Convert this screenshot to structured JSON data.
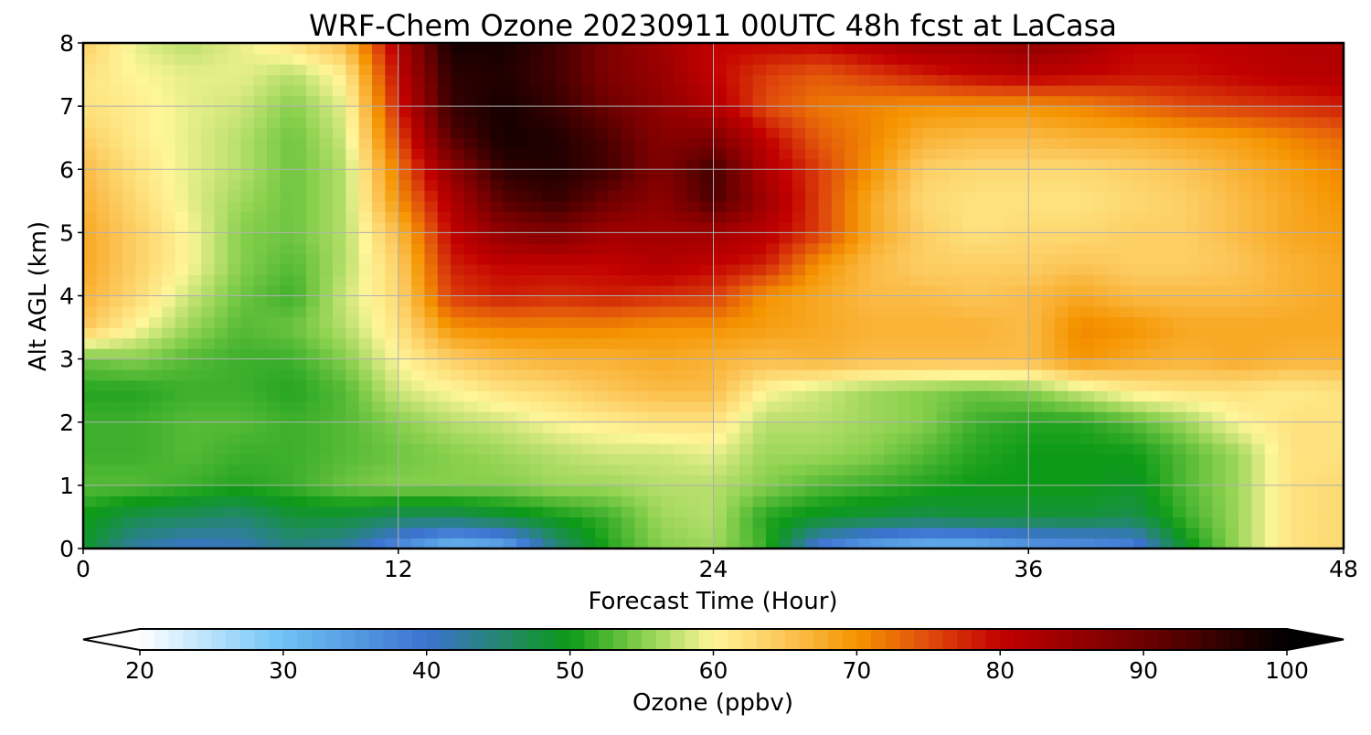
{
  "chart_data": {
    "type": "heatmap",
    "title": "WRF-Chem Ozone  20230911 00UTC 48h fcst at LaCasa",
    "xlabel": "Forecast Time (Hour)",
    "ylabel": "Alt AGL (km)",
    "xlim": [
      0,
      48
    ],
    "ylim": [
      0,
      8
    ],
    "x_ticks": [
      0,
      12,
      24,
      36,
      48
    ],
    "y_ticks": [
      0,
      1,
      2,
      3,
      4,
      5,
      6,
      7,
      8
    ],
    "grid": true,
    "x": [
      0,
      2,
      4,
      6,
      8,
      10,
      12,
      14,
      16,
      18,
      20,
      22,
      24,
      26,
      28,
      30,
      32,
      34,
      36,
      38,
      40,
      42,
      44,
      46,
      48
    ],
    "y": [
      0,
      0.5,
      1,
      1.5,
      2,
      2.5,
      3,
      3.5,
      4,
      4.5,
      5,
      5.5,
      6,
      6.5,
      7,
      7.5,
      8
    ],
    "z": [
      [
        49,
        42,
        40,
        41,
        44,
        42,
        36,
        30,
        32,
        44,
        51,
        55,
        56,
        52,
        38,
        33,
        31,
        31,
        34,
        35,
        37,
        49,
        56,
        62,
        63
      ],
      [
        50,
        47,
        46,
        45,
        48,
        48,
        46,
        46,
        48,
        50,
        52,
        56,
        57,
        51,
        49,
        48,
        47,
        48,
        48,
        48,
        47,
        52,
        56,
        62,
        63
      ],
      [
        53,
        53,
        52,
        51,
        52,
        54,
        55,
        55,
        55,
        56,
        56,
        57,
        57,
        55,
        53,
        52,
        51,
        50,
        50,
        50,
        49,
        53,
        56,
        62,
        63
      ],
      [
        52,
        52,
        53,
        52,
        52,
        53,
        54,
        55,
        56,
        57,
        58,
        58,
        59,
        56,
        56,
        55,
        53,
        51,
        50,
        50,
        50,
        53,
        56,
        62,
        62
      ],
      [
        52,
        52,
        53,
        53,
        52,
        53,
        55,
        57,
        58,
        60,
        61,
        62,
        62,
        57,
        57,
        56,
        55,
        52,
        51,
        51,
        53,
        56,
        60,
        62,
        62
      ],
      [
        51,
        51,
        52,
        52,
        51,
        53,
        58,
        60,
        62,
        63,
        65,
        66,
        66,
        60,
        58,
        56,
        55,
        54,
        55,
        58,
        61,
        62,
        62,
        61,
        62
      ],
      [
        54,
        55,
        53,
        52,
        52,
        55,
        60,
        64,
        66,
        67,
        67,
        68,
        67,
        66,
        67,
        66,
        66,
        66,
        66,
        70,
        68,
        67,
        68,
        67,
        67
      ],
      [
        65,
        60,
        56,
        53,
        54,
        57,
        62,
        70,
        71,
        71,
        71,
        70,
        70,
        69,
        68,
        67,
        67,
        67,
        66,
        71,
        70,
        68,
        68,
        68,
        68
      ],
      [
        67,
        63,
        58,
        54,
        52,
        58,
        63,
        76,
        78,
        77,
        78,
        77,
        76,
        70,
        68,
        66,
        66,
        65,
        66,
        68,
        66,
        66,
        66,
        67,
        68
      ],
      [
        68,
        64,
        60,
        55,
        53,
        57,
        64,
        78,
        80,
        80,
        80,
        82,
        80,
        78,
        70,
        66,
        64,
        64,
        64,
        65,
        64,
        64,
        65,
        67,
        68
      ],
      [
        68,
        64,
        60,
        55,
        54,
        57,
        66,
        80,
        86,
        88,
        84,
        84,
        84,
        81,
        76,
        68,
        64,
        62,
        63,
        63,
        64,
        64,
        66,
        68,
        69
      ],
      [
        67,
        63,
        59,
        56,
        54,
        57,
        70,
        82,
        92,
        95,
        90,
        86,
        93,
        84,
        76,
        68,
        63,
        62,
        62,
        62,
        63,
        64,
        66,
        68,
        70
      ],
      [
        66,
        62,
        59,
        57,
        54,
        57,
        72,
        86,
        96,
        97,
        94,
        88,
        94,
        82,
        76,
        70,
        64,
        63,
        63,
        63,
        64,
        65,
        67,
        69,
        71
      ],
      [
        64,
        61,
        59,
        57,
        54,
        58,
        75,
        92,
        98,
        97,
        93,
        87,
        88,
        80,
        74,
        71,
        67,
        66,
        66,
        67,
        67,
        68,
        69,
        71,
        73
      ],
      [
        62,
        61,
        59,
        58,
        55,
        59,
        78,
        95,
        98,
        95,
        90,
        86,
        82,
        75,
        72,
        71,
        70,
        70,
        70,
        71,
        73,
        75,
        76,
        77,
        78
      ],
      [
        62,
        60,
        59,
        59,
        57,
        61,
        80,
        96,
        97,
        94,
        88,
        85,
        80,
        76,
        74,
        76,
        78,
        80,
        81,
        80,
        79,
        79,
        80,
        81,
        82
      ],
      [
        64,
        59,
        57,
        59,
        62,
        66,
        82,
        98,
        98,
        94,
        88,
        84,
        80,
        80,
        80,
        82,
        84,
        84,
        86,
        84,
        80,
        80,
        81,
        82,
        82
      ]
    ],
    "colorbar": {
      "label": "Ozone  (ppbv)",
      "min": 20,
      "max": 100,
      "ticks": [
        20,
        30,
        40,
        50,
        60,
        70,
        80,
        90,
        100
      ],
      "extend": "both",
      "color_stops": [
        [
          20,
          "#ffffff"
        ],
        [
          30,
          "#6ec2f5"
        ],
        [
          40,
          "#3c72cf"
        ],
        [
          50,
          "#0c9a16"
        ],
        [
          55,
          "#86cf4c"
        ],
        [
          60,
          "#fff69a"
        ],
        [
          65,
          "#fcc557"
        ],
        [
          70,
          "#f59400"
        ],
        [
          75,
          "#e04c0c"
        ],
        [
          80,
          "#c20000"
        ],
        [
          90,
          "#6e0000"
        ],
        [
          100,
          "#000000"
        ]
      ]
    }
  }
}
